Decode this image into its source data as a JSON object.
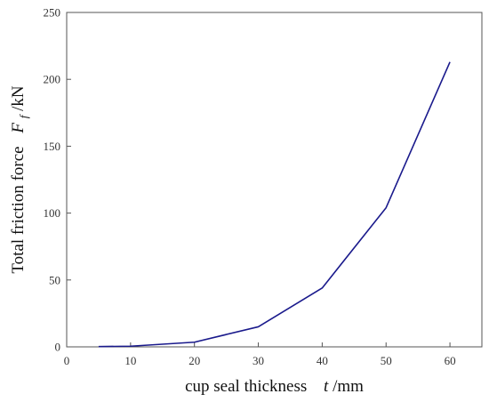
{
  "chart_data": {
    "type": "line",
    "title": "",
    "x": [
      5,
      10,
      20,
      30,
      40,
      50,
      60
    ],
    "series": [
      {
        "values": [
          0.2,
          0.5,
          3.5,
          15,
          44,
          104,
          213
        ],
        "color": "#1a1a8c"
      }
    ],
    "xlabel": {
      "text": "cup seal thickness",
      "symbol": "t",
      "unit": "/mm"
    },
    "ylabel": {
      "text": "Total friction force",
      "symbol": "F",
      "subscript": "f",
      "unit": "/kN"
    },
    "xlim": [
      0,
      65
    ],
    "ylim": [
      0,
      250
    ],
    "xticks": [
      0,
      10,
      20,
      30,
      40,
      50,
      60
    ],
    "yticks": [
      0,
      50,
      100,
      150,
      200,
      250
    ],
    "grid": false,
    "legend": "none"
  }
}
